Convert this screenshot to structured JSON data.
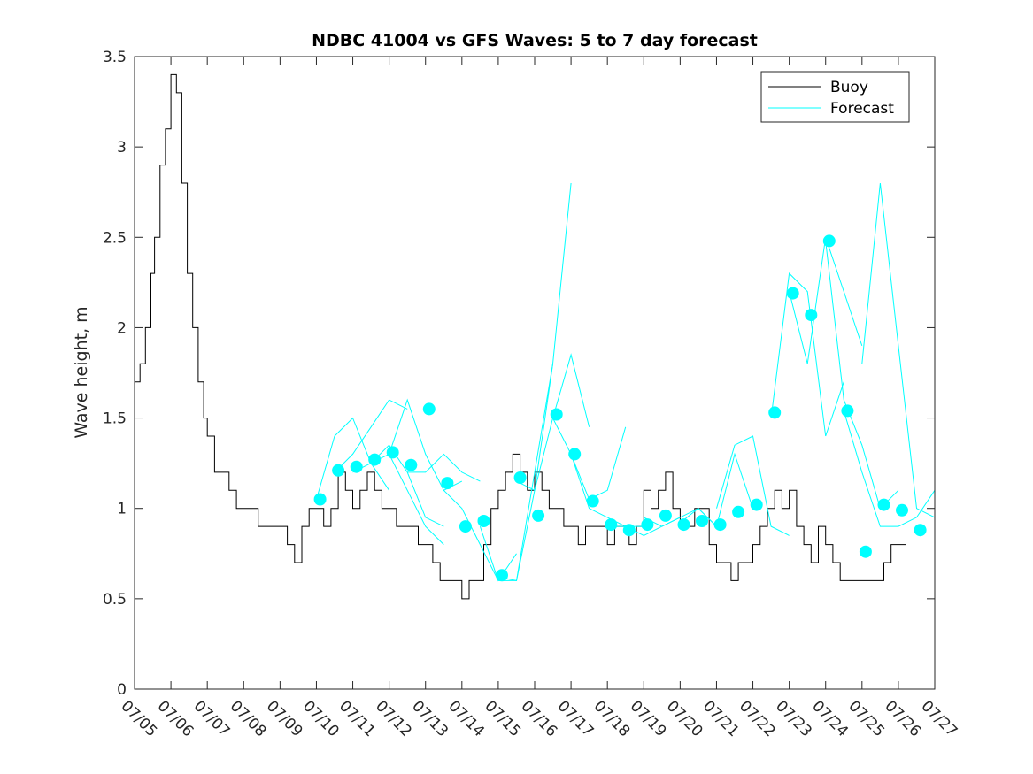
{
  "chart_data": {
    "type": "line",
    "title": "NDBC 41004 vs GFS Waves: 5 to 7 day forecast",
    "xlabel": "",
    "ylabel": "Wave height, m",
    "ylim": [
      0,
      3.5
    ],
    "yticks": [
      "0",
      "0.5",
      "1",
      "1.5",
      "2",
      "2.5",
      "3",
      "3.5"
    ],
    "xlim": [
      0,
      22
    ],
    "xticks": [
      "07/05",
      "07/06",
      "07/07",
      "07/08",
      "07/09",
      "07/10",
      "07/11",
      "07/12",
      "07/13",
      "07/14",
      "07/15",
      "07/16",
      "07/17",
      "07/18",
      "07/19",
      "07/20",
      "07/21",
      "07/22",
      "07/23",
      "07/24",
      "07/25",
      "07/26",
      "07/27"
    ],
    "grid": false,
    "legend": {
      "placement": "top-right",
      "entries": [
        "Buoy",
        "Forecast"
      ]
    },
    "colors": {
      "buoy": "#000000",
      "forecast": "#00ffff",
      "axis": "#262626"
    },
    "series": [
      {
        "name": "Buoy",
        "x": [
          0,
          0.15,
          0.3,
          0.45,
          0.55,
          0.7,
          0.85,
          1.0,
          1.15,
          1.3,
          1.45,
          1.6,
          1.75,
          1.9,
          2.0,
          2.2,
          2.4,
          2.6,
          2.8,
          3.0,
          3.2,
          3.4,
          3.6,
          3.8,
          4.0,
          4.2,
          4.4,
          4.6,
          4.8,
          5.0,
          5.2,
          5.4,
          5.6,
          5.8,
          6.0,
          6.2,
          6.4,
          6.6,
          6.8,
          7.0,
          7.2,
          7.4,
          7.6,
          7.8,
          8.0,
          8.2,
          8.4,
          8.6,
          8.8,
          9.0,
          9.2,
          9.4,
          9.6,
          9.8,
          10.0,
          10.2,
          10.4,
          10.6,
          10.8,
          11.0,
          11.2,
          11.4,
          11.6,
          11.8,
          12.0,
          12.2,
          12.4,
          12.6,
          12.8,
          13.0,
          13.2,
          13.4,
          13.6,
          13.8,
          14.0,
          14.2,
          14.4,
          14.6,
          14.8,
          15.0,
          15.2,
          15.4,
          15.6,
          15.8,
          16.0,
          16.2,
          16.4,
          16.6,
          16.8,
          17.0,
          17.2,
          17.4,
          17.6,
          17.8,
          18.0,
          18.2,
          18.4,
          18.6,
          18.8,
          19.0,
          19.2,
          19.4,
          19.6,
          19.8,
          20.0,
          20.2,
          20.4,
          20.6,
          20.8,
          21.0,
          21.2
        ],
        "y": [
          1.7,
          1.8,
          2.0,
          2.3,
          2.5,
          2.9,
          3.1,
          3.4,
          3.3,
          2.8,
          2.3,
          2.0,
          1.7,
          1.5,
          1.4,
          1.2,
          1.2,
          1.1,
          1.0,
          1.0,
          1.0,
          0.9,
          0.9,
          0.9,
          0.9,
          0.8,
          0.7,
          0.9,
          1.0,
          1.0,
          0.9,
          1.0,
          1.2,
          1.1,
          1.0,
          1.1,
          1.2,
          1.1,
          1.0,
          1.0,
          0.9,
          0.9,
          0.9,
          0.8,
          0.8,
          0.7,
          0.6,
          0.6,
          0.6,
          0.5,
          0.6,
          0.6,
          0.8,
          1.0,
          1.1,
          1.2,
          1.3,
          1.2,
          1.1,
          1.2,
          1.1,
          1.0,
          1.0,
          0.9,
          0.9,
          0.8,
          0.9,
          0.9,
          0.9,
          0.8,
          0.9,
          0.9,
          0.8,
          0.9,
          1.1,
          1.0,
          1.1,
          1.2,
          1.0,
          0.9,
          0.9,
          1.0,
          1.0,
          0.8,
          0.7,
          0.7,
          0.6,
          0.7,
          0.7,
          0.8,
          0.9,
          1.0,
          1.1,
          1.0,
          1.1,
          0.9,
          0.8,
          0.7,
          0.9,
          0.8,
          0.7,
          0.6,
          0.6,
          0.6,
          0.6,
          0.6,
          0.6,
          0.7,
          0.8,
          0.8,
          0.8
        ]
      },
      {
        "name": "Forecast",
        "lines": [
          {
            "x": [
              5.0,
              5.5,
              6.0,
              6.5,
              7.0
            ],
            "y": [
              1.05,
              1.4,
              1.5,
              1.25,
              1.1
            ]
          },
          {
            "x": [
              5.5,
              6.0,
              6.5,
              7.0,
              7.5
            ],
            "y": [
              1.2,
              1.3,
              1.45,
              1.6,
              1.55
            ]
          },
          {
            "x": [
              6.0,
              6.5,
              7.0,
              7.5,
              8.0,
              8.5
            ],
            "y": [
              1.2,
              1.25,
              1.3,
              1.1,
              0.9,
              0.8
            ]
          },
          {
            "x": [
              6.5,
              7.0,
              7.5,
              8.0,
              8.5
            ],
            "y": [
              1.25,
              1.35,
              1.2,
              0.95,
              0.9
            ]
          },
          {
            "x": [
              7.0,
              7.5,
              8.0,
              8.5,
              9.0
            ],
            "y": [
              1.3,
              1.6,
              1.3,
              1.1,
              1.15
            ]
          },
          {
            "x": [
              7.5,
              8.0,
              8.5,
              9.0,
              9.5
            ],
            "y": [
              1.2,
              1.2,
              1.3,
              1.2,
              1.15
            ]
          },
          {
            "x": [
              8.5,
              9.0,
              9.5,
              10.0,
              10.5
            ],
            "y": [
              1.1,
              1.0,
              0.8,
              0.6,
              0.75
            ]
          },
          {
            "x": [
              9.5,
              10.0,
              10.5,
              11.0,
              11.5
            ],
            "y": [
              0.9,
              0.6,
              0.6,
              1.1,
              1.8
            ]
          },
          {
            "x": [
              10.0,
              10.5,
              11.0,
              11.5,
              12.0
            ],
            "y": [
              0.62,
              0.6,
              1.2,
              1.8,
              2.8
            ]
          },
          {
            "x": [
              10.5,
              11.0,
              11.5,
              12.0,
              12.5
            ],
            "y": [
              1.15,
              1.1,
              1.5,
              1.85,
              1.45
            ]
          },
          {
            "x": [
              11.5,
              12.0,
              12.5,
              13.0,
              13.5
            ],
            "y": [
              1.5,
              1.3,
              1.05,
              1.1,
              1.45
            ]
          },
          {
            "x": [
              12.0,
              12.5,
              13.0,
              13.5,
              14.0
            ],
            "y": [
              1.3,
              1.0,
              0.95,
              0.9,
              0.9
            ]
          },
          {
            "x": [
              13.0,
              13.5,
              14.0,
              14.5,
              15.0
            ],
            "y": [
              0.9,
              0.9,
              0.85,
              0.9,
              0.95
            ]
          },
          {
            "x": [
              14.0,
              14.5,
              15.0,
              15.5,
              16.0
            ],
            "y": [
              0.95,
              0.9,
              0.95,
              1.0,
              0.9
            ]
          },
          {
            "x": [
              15.0,
              15.5,
              16.0,
              16.5,
              17.0
            ],
            "y": [
              0.92,
              1.0,
              0.9,
              1.3,
              1.0
            ]
          },
          {
            "x": [
              16.0,
              16.5,
              17.0,
              17.5,
              18.0
            ],
            "y": [
              1.0,
              1.35,
              1.4,
              0.9,
              0.85
            ]
          },
          {
            "x": [
              17.5,
              18.0,
              18.5,
              19.0,
              19.5
            ],
            "y": [
              1.5,
              2.3,
              2.2,
              1.4,
              1.7
            ]
          },
          {
            "x": [
              18.0,
              18.5,
              19.0,
              19.5,
              20.0
            ],
            "y": [
              2.2,
              1.8,
              2.5,
              2.2,
              1.9
            ]
          },
          {
            "x": [
              19.0,
              19.5,
              20.0,
              20.5,
              21.0
            ],
            "y": [
              2.48,
              1.6,
              1.35,
              1.0,
              1.1
            ]
          },
          {
            "x": [
              19.5,
              20.0,
              20.5,
              21.0,
              21.5,
              22.0
            ],
            "y": [
              1.54,
              1.2,
              0.9,
              0.9,
              0.95,
              1.1
            ]
          },
          {
            "x": [
              20.0,
              20.5,
              21.0,
              21.5,
              22.0
            ],
            "y": [
              1.8,
              2.8,
              1.9,
              1.0,
              0.95
            ]
          }
        ],
        "markers_x": [
          5.1,
          5.6,
          6.1,
          6.6,
          7.1,
          7.6,
          8.1,
          8.6,
          9.1,
          9.6,
          10.1,
          10.6,
          11.1,
          11.6,
          12.1,
          12.6,
          13.1,
          13.6,
          14.1,
          14.6,
          15.1,
          15.6,
          16.1,
          16.6,
          17.1,
          17.6,
          18.1,
          18.6,
          19.1,
          19.6,
          20.1,
          20.6,
          21.1,
          21.6
        ],
        "markers_y": [
          1.05,
          1.21,
          1.23,
          1.27,
          1.31,
          1.24,
          1.55,
          1.14,
          0.9,
          0.93,
          0.63,
          1.17,
          0.96,
          1.52,
          1.3,
          1.04,
          0.91,
          0.88,
          0.91,
          0.96,
          0.91,
          0.93,
          0.91,
          0.98,
          1.02,
          1.53,
          2.19,
          2.07,
          2.48,
          1.54,
          0.76,
          1.02,
          0.99,
          0.88
        ]
      }
    ]
  }
}
